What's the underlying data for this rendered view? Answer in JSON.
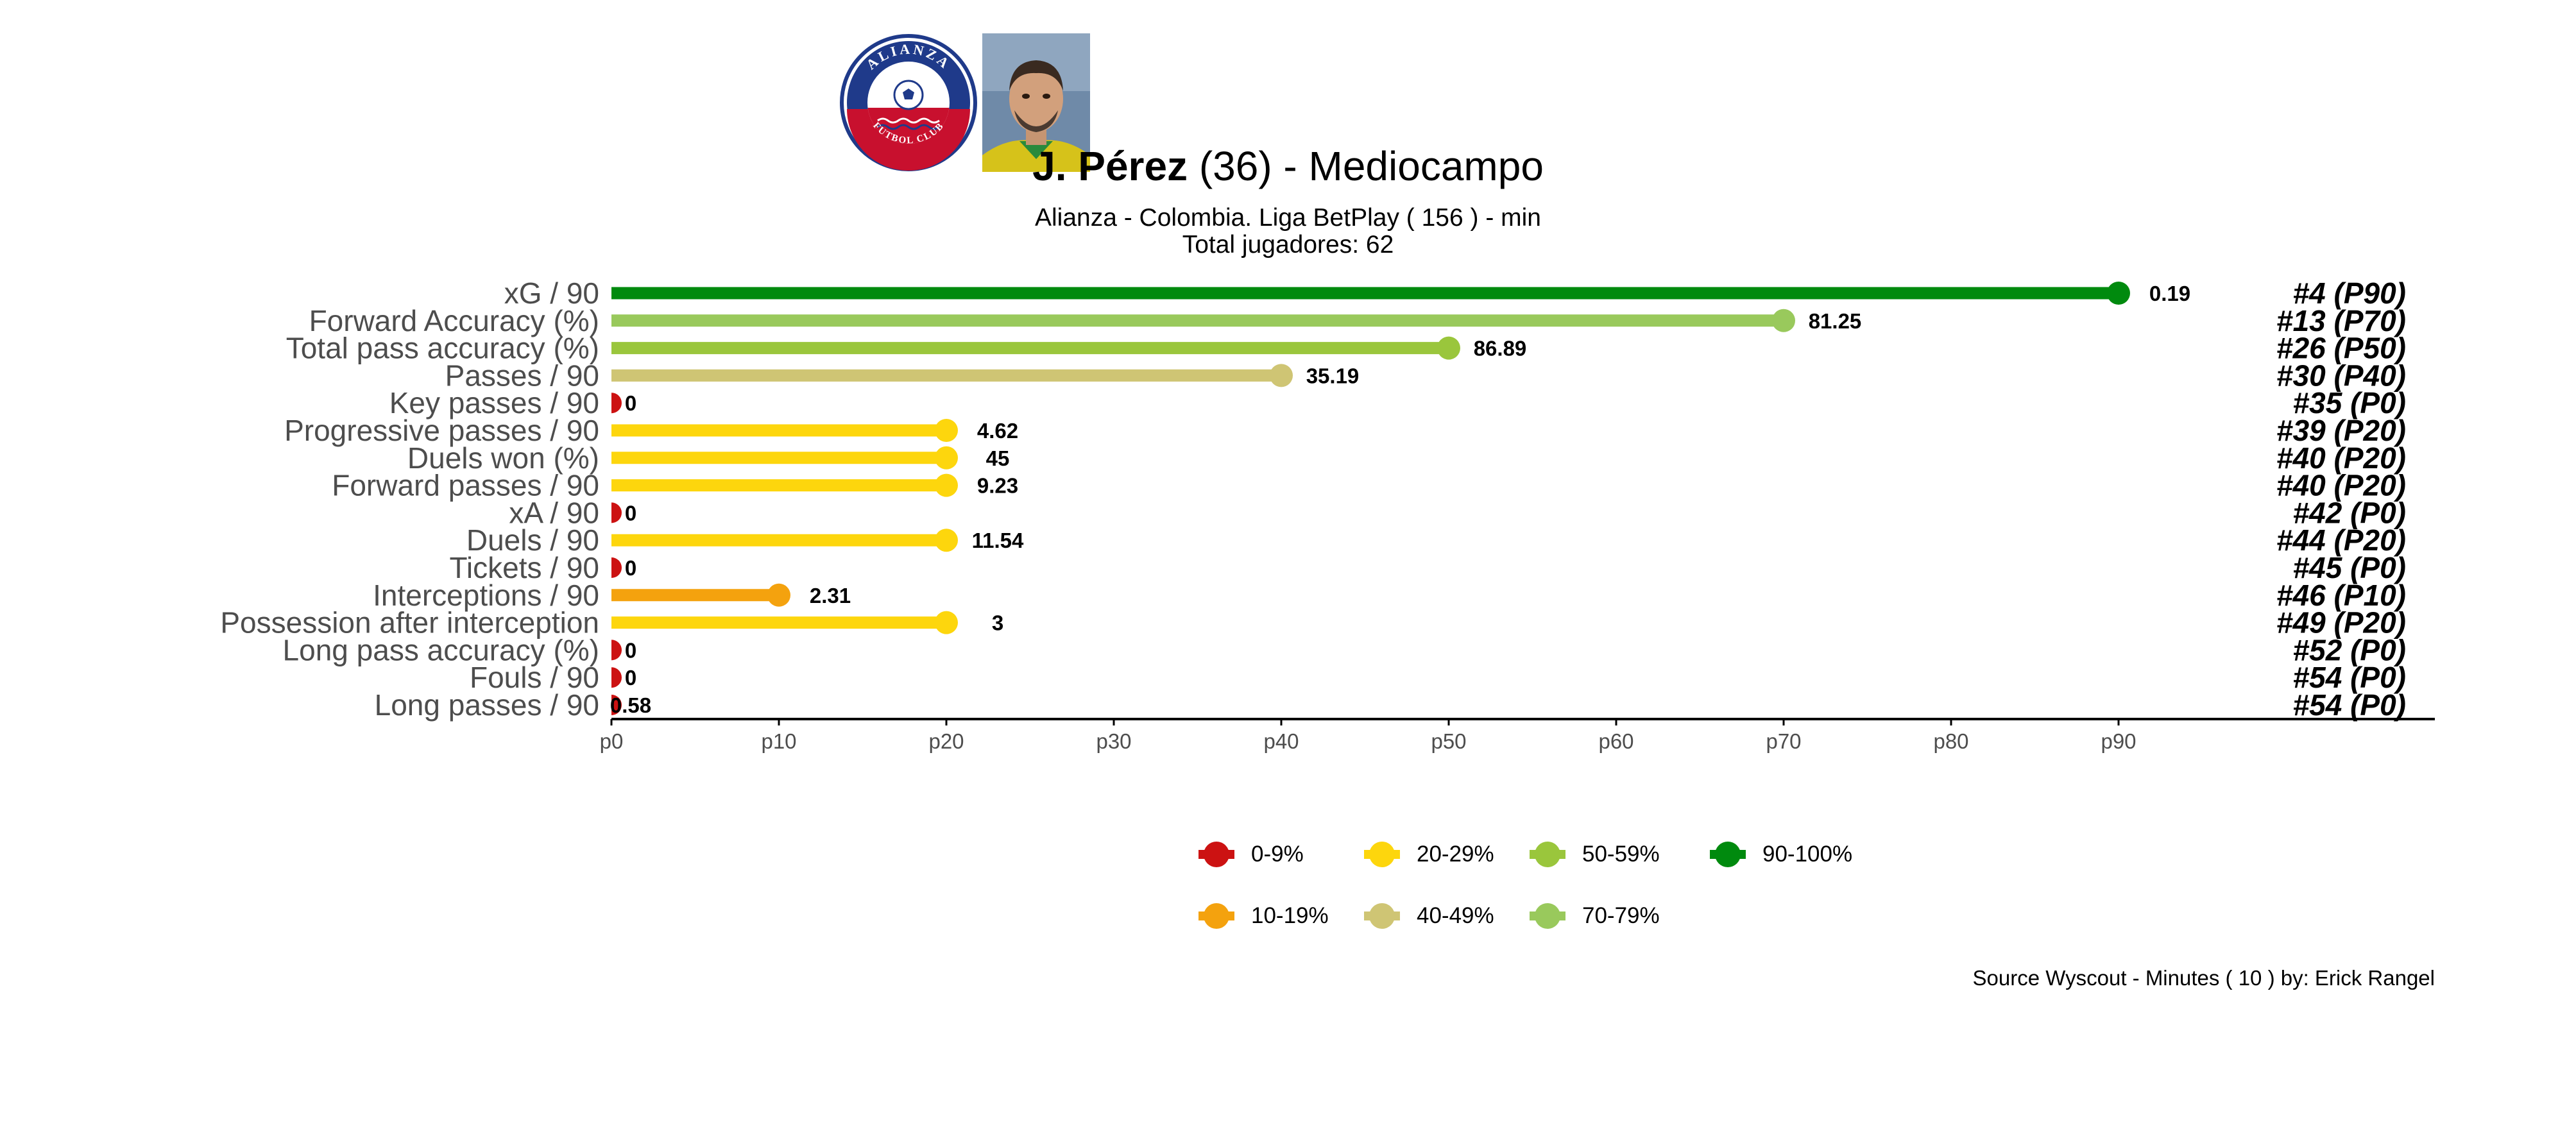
{
  "header": {
    "player_name": "J. Pérez",
    "player_age": "(36)",
    "position_text": "-  Mediocampo",
    "subtitle_line1": "Alianza  -  Colombia. Liga BetPlay  ( 156 ) - min",
    "subtitle_line2": "Total jugadores:  62",
    "club_logo": {
      "top_text": "ALIANZA",
      "bottom_text": "FUTBOL CLUB",
      "icon": "soccer-ball-icon",
      "colors": {
        "outer": "#1f3a8a",
        "red": "#c8102e",
        "white": "#ffffff"
      }
    },
    "player_photo": {
      "icon": "player-photo"
    }
  },
  "chart_data": {
    "type": "lollipop",
    "x_ticks": [
      "p0",
      "p10",
      "p20",
      "p30",
      "p40",
      "p50",
      "p60",
      "p70",
      "p80",
      "p90"
    ],
    "xlim": [
      0,
      100
    ],
    "metrics": [
      {
        "label": "xG / 90",
        "percentile": 90,
        "value": "0.19",
        "rank": "#4 (P90)",
        "color": "#008a0e"
      },
      {
        "label": "Forward Accuracy (%)",
        "percentile": 70,
        "value": "81.25",
        "rank": "#13 (P70)",
        "color": "#99c95c"
      },
      {
        "label": "Total pass accuracy (%)",
        "percentile": 50,
        "value": "86.89",
        "rank": "#26 (P50)",
        "color": "#9ac63c"
      },
      {
        "label": "Passes / 90",
        "percentile": 40,
        "value": "35.19",
        "rank": "#30 (P40)",
        "color": "#cfc574"
      },
      {
        "label": "Key passes / 90",
        "percentile": 0,
        "value": "0",
        "rank": "#35 (P0)",
        "color": "#cc1212"
      },
      {
        "label": "Progressive passes / 90",
        "percentile": 20,
        "value": "4.62",
        "rank": "#39 (P20)",
        "color": "#fdd60d"
      },
      {
        "label": "Duels won (%)",
        "percentile": 20,
        "value": "45",
        "rank": "#40 (P20)",
        "color": "#fdd60d"
      },
      {
        "label": "Forward passes / 90",
        "percentile": 20,
        "value": "9.23",
        "rank": "#40 (P20)",
        "color": "#fdd60d"
      },
      {
        "label": "xA / 90",
        "percentile": 0,
        "value": "0",
        "rank": "#42 (P0)",
        "color": "#cc1212"
      },
      {
        "label": "Duels / 90",
        "percentile": 20,
        "value": "11.54",
        "rank": "#44 (P20)",
        "color": "#fdd60d"
      },
      {
        "label": "Tickets / 90",
        "percentile": 0,
        "value": "0",
        "rank": "#45 (P0)",
        "color": "#cc1212"
      },
      {
        "label": "Interceptions / 90",
        "percentile": 10,
        "value": "2.31",
        "rank": "#46 (P10)",
        "color": "#f4a20e"
      },
      {
        "label": "Possession after interception",
        "percentile": 20,
        "value": "3",
        "rank": "#49 (P20)",
        "color": "#fdd60d"
      },
      {
        "label": "Long pass accuracy (%)",
        "percentile": 0,
        "value": "0",
        "rank": "#52 (P0)",
        "color": "#cc1212"
      },
      {
        "label": "Fouls / 90",
        "percentile": 0,
        "value": "0",
        "rank": "#54 (P0)",
        "color": "#cc1212"
      },
      {
        "label": "Long passes / 90",
        "percentile": 0,
        "value": "0.58",
        "rank": "#54 (P0)",
        "color": "#cc1212"
      }
    ],
    "legend": [
      {
        "label": "0-9%",
        "color": "#cc1212"
      },
      {
        "label": "10-19%",
        "color": "#f4a20e"
      },
      {
        "label": "20-29%",
        "color": "#fdd60d"
      },
      {
        "label": "40-49%",
        "color": "#cfc574"
      },
      {
        "label": "50-59%",
        "color": "#9ac63c"
      },
      {
        "label": "70-79%",
        "color": "#99c95c"
      },
      {
        "label": "90-100%",
        "color": "#008a0e"
      }
    ],
    "legend_placement": "bottom",
    "grid": false
  },
  "footer": {
    "source": "Source Wyscout - Minutes ( 10 ) by: Erick Rangel"
  }
}
